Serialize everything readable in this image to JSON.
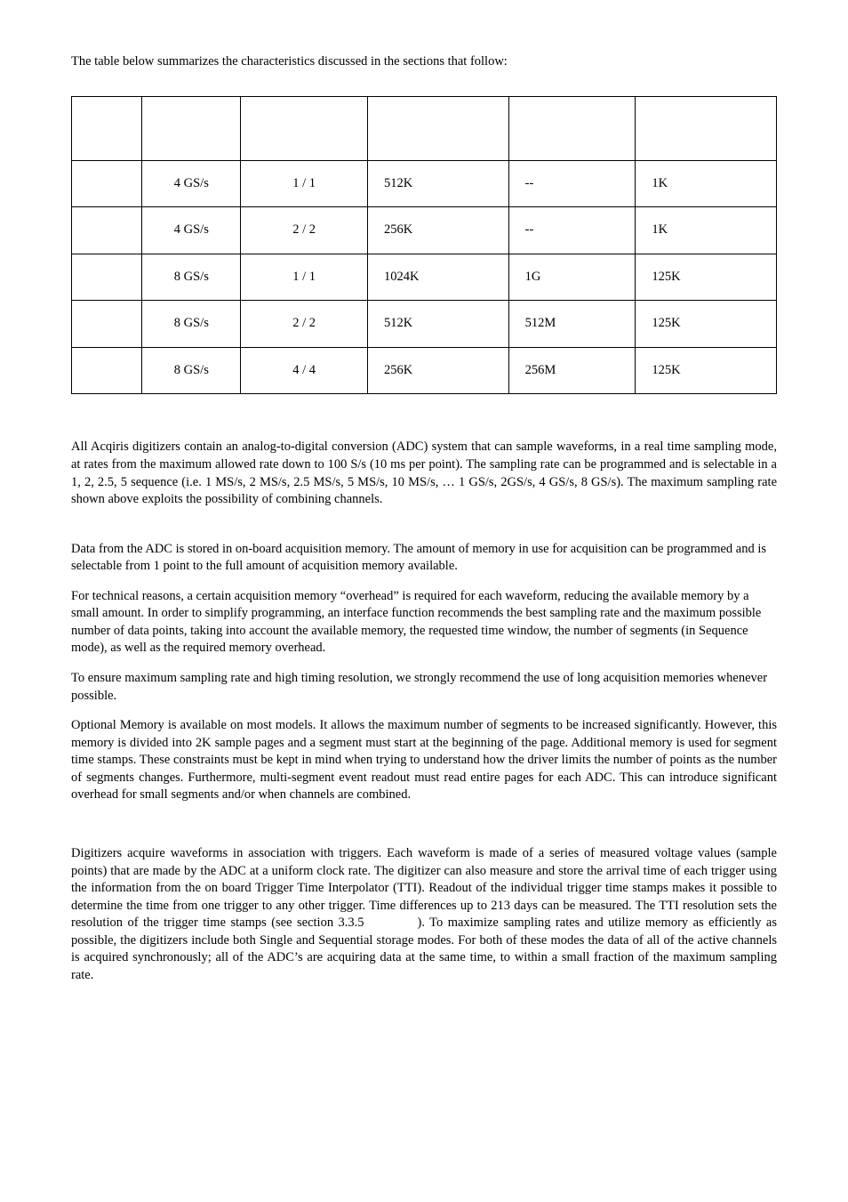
{
  "intro": "The table below summarizes the characteristics discussed in the sections that follow:",
  "table": {
    "rows": [
      {
        "c1": "",
        "c2": "4 GS/s",
        "c3": "1 / 1",
        "c4": "512K",
        "c5": "--",
        "c6": "1K"
      },
      {
        "c1": "",
        "c2": "4 GS/s",
        "c3": "2 / 2",
        "c4": "256K",
        "c5": "--",
        "c6": "1K"
      },
      {
        "c1": "",
        "c2": "8 GS/s",
        "c3": "1 / 1",
        "c4": "1024K",
        "c5": "1G",
        "c6": "125K"
      },
      {
        "c1": "",
        "c2": "8 GS/s",
        "c3": "2 / 2",
        "c4": "512K",
        "c5": "512M",
        "c6": "125K"
      },
      {
        "c1": "",
        "c2": "8 GS/s",
        "c3": "4 / 4",
        "c4": "256K",
        "c5": "256M",
        "c6": "125K"
      }
    ]
  },
  "para1": "All Acqiris digitizers contain an analog-to-digital conversion (ADC) system that can sample waveforms, in a real time sampling mode, at rates from the maximum allowed rate down to 100 S/s (10 ms per point). The sampling rate can be programmed and is selectable in a 1, 2, 2.5, 5 sequence (i.e. 1 MS/s, 2 MS/s, 2.5 MS/s, 5 MS/s, 10 MS/s, … 1 GS/s, 2GS/s, 4 GS/s, 8 GS/s). The maximum sampling rate shown above exploits the possibility of combining channels.",
  "para2": "Data from the ADC is stored in on-board acquisition memory. The amount of memory in use for acquisition can be programmed and is selectable from 1 point to the full amount of acquisition memory available.",
  "para3": "For technical reasons, a certain acquisition memory “overhead” is required for each waveform, reducing the available memory by a small amount. In order to simplify programming, an interface function recommends the best sampling rate and the maximum possible number of data points, taking into account the available memory, the requested time window, the number of segments (in Sequence mode), as well as the required memory overhead.",
  "para4": "To ensure maximum sampling rate and high timing resolution, we strongly recommend the use of long acquisition memories whenever possible.",
  "para5": "Optional Memory is available on most models. It allows the maximum number of segments to be increased significantly. However, this memory is divided into 2K sample pages and a segment must start at the beginning of the page. Additional memory is used for segment time stamps. These constraints must be kept in mind when trying to understand how the driver limits the number of points as the number of segments changes. Furthermore, multi-segment event readout must read entire pages for each ADC. This can introduce significant overhead for small segments and/or when channels are combined.",
  "para6": "Digitizers acquire waveforms in association with triggers. Each waveform is made of a series of measured voltage values (sample points) that are made by the ADC at a uniform clock rate. The digitizer can also measure and store the arrival time of each trigger using the information from the on board Trigger Time Interpolator (TTI). Readout of the individual trigger time stamps makes it possible to determine the time from one trigger to any other trigger. Time differences up to 213 days can be measured. The TTI resolution sets the resolution of the trigger time stamps (see section 3.3.5           ). To maximize sampling rates and utilize memory as efficiently as possible, the digitizers include both Single and Sequential storage modes. For both of these modes the data of all of the active channels is acquired synchronously; all of the ADC’s are acquiring data at the same time, to within a small fraction of the maximum sampling rate."
}
